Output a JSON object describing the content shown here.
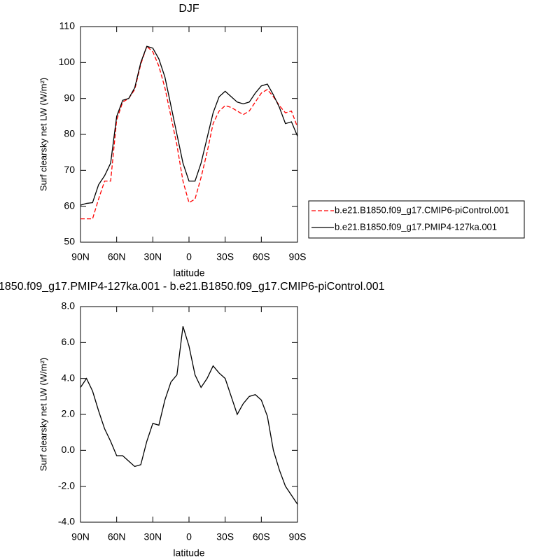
{
  "chart_data": [
    {
      "type": "line",
      "title": "DJF",
      "xlabel": "latitude",
      "ylabel": "Surf clearsky net LW (W/m²)",
      "xlim": [
        90,
        -90
      ],
      "xticks": [
        {
          "value": 90,
          "label": "90N"
        },
        {
          "value": 60,
          "label": "60N"
        },
        {
          "value": 30,
          "label": "30N"
        },
        0,
        {
          "value": -30,
          "label": "30S"
        },
        {
          "value": -60,
          "label": "60S"
        },
        {
          "value": -90,
          "label": "90S"
        }
      ],
      "ylim": [
        50,
        110
      ],
      "yticks": [
        50,
        60,
        70,
        80,
        90,
        100,
        110
      ],
      "x": [
        90,
        85,
        80,
        75,
        70,
        65,
        60,
        55,
        50,
        45,
        40,
        35,
        30,
        25,
        20,
        15,
        10,
        5,
        0,
        -5,
        -10,
        -15,
        -20,
        -25,
        -30,
        -35,
        -40,
        -45,
        -50,
        -55,
        -60,
        -65,
        -70,
        -75,
        -80,
        -85,
        -90
      ],
      "series": [
        {
          "name": "b.e21.B1850.f09_g17.CMIP6-piControl.001",
          "color": "#ff0000",
          "dash": true,
          "values": [
            56.5,
            56.5,
            56.5,
            62,
            67,
            67,
            84,
            89,
            90,
            92.5,
            99.5,
            104.5,
            103,
            99,
            93,
            85,
            77,
            67,
            61,
            62,
            68,
            75,
            83,
            86.5,
            88,
            87.5,
            86.5,
            85.5,
            86.5,
            89,
            91.5,
            92.5,
            90.5,
            88,
            86,
            86.5,
            82
          ]
        },
        {
          "name": "b.e21.B1850.f09_g17.PMIP4-127ka.001",
          "color": "#000000",
          "dash": false,
          "values": [
            60.3,
            60.8,
            61,
            66,
            68.5,
            72,
            85,
            89.5,
            90,
            93,
            100,
            104.5,
            104,
            101,
            96,
            88,
            80,
            72,
            67,
            67,
            72,
            79,
            86,
            90.5,
            92,
            90.5,
            89,
            88.5,
            89,
            91.5,
            93.5,
            94,
            91,
            87.5,
            83,
            83.5,
            79.5
          ]
        }
      ]
    },
    {
      "type": "line",
      "title": "1850.f09_g17.PMIP4-127ka.001 - b.e21.B1850.f09_g17.CMIP6-piControl.001",
      "xlabel": "latitude",
      "ylabel": "Surf clearsky net LW (W/m²)",
      "xlim": [
        90,
        -90
      ],
      "xticks": [
        {
          "value": 90,
          "label": "90N"
        },
        {
          "value": 60,
          "label": "60N"
        },
        {
          "value": 30,
          "label": "30N"
        },
        0,
        {
          "value": -30,
          "label": "30S"
        },
        {
          "value": -60,
          "label": "60S"
        },
        {
          "value": -90,
          "label": "90S"
        }
      ],
      "ylim": [
        -4,
        8
      ],
      "yticks": [
        {
          "value": -4,
          "label": "-4.0"
        },
        {
          "value": -2,
          "label": "-2.0"
        },
        {
          "value": 0,
          "label": "0.0"
        },
        {
          "value": 2,
          "label": "2.0"
        },
        {
          "value": 4,
          "label": "4.0"
        },
        {
          "value": 6,
          "label": "6.0"
        },
        {
          "value": 8,
          "label": "8.0"
        }
      ],
      "x": [
        90,
        85,
        80,
        75,
        70,
        65,
        60,
        55,
        50,
        45,
        40,
        35,
        30,
        25,
        20,
        15,
        10,
        5,
        0,
        -5,
        -10,
        -15,
        -20,
        -25,
        -30,
        -35,
        -40,
        -45,
        -50,
        -55,
        -60,
        -65,
        -70,
        -75,
        -80,
        -85,
        -90
      ],
      "series": [
        {
          "color": "#000000",
          "dash": false,
          "values": [
            3.5,
            4.0,
            3.3,
            2.2,
            1.2,
            0.5,
            -0.3,
            -0.3,
            -0.6,
            -0.9,
            -0.8,
            0.5,
            1.5,
            1.4,
            2.8,
            3.8,
            4.2,
            6.9,
            5.8,
            4.2,
            3.5,
            4.0,
            4.7,
            4.3,
            4.0,
            3.0,
            2.0,
            2.6,
            3.0,
            3.1,
            2.8,
            1.9,
            0.0,
            -1.1,
            -2.0,
            -2.5,
            -3.0
          ]
        }
      ]
    }
  ]
}
